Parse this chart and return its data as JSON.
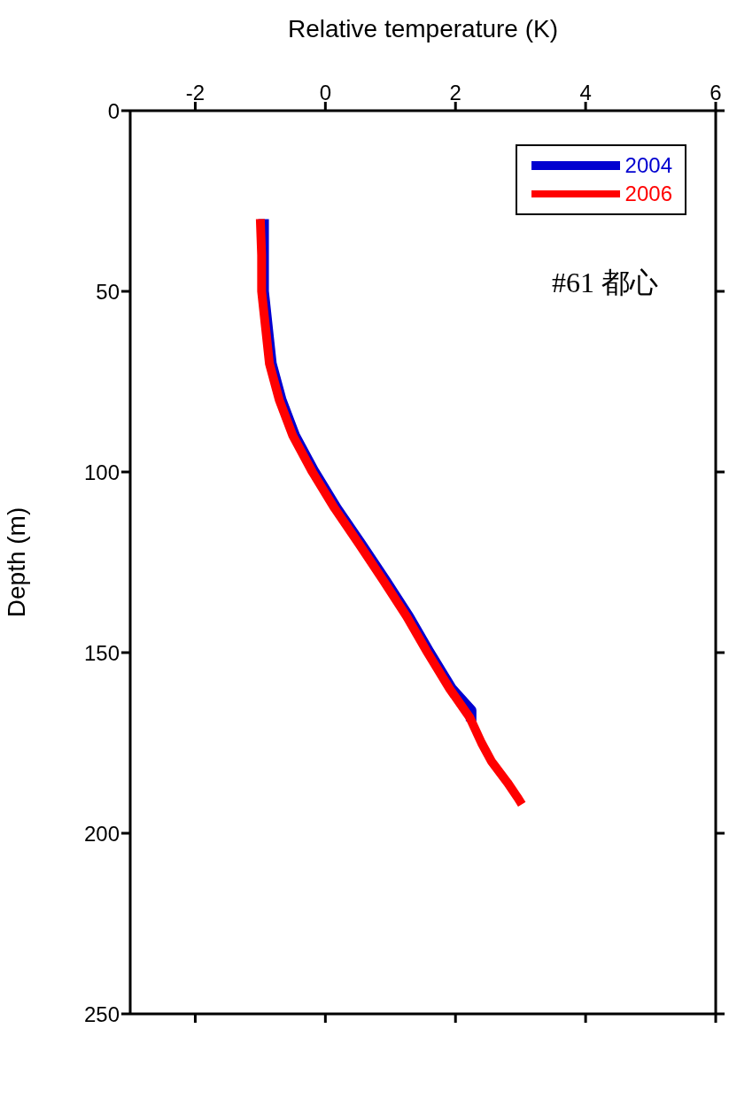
{
  "chart_data": {
    "type": "line",
    "xlabel": "Relative temperature (K)",
    "ylabel": "Depth (m)",
    "xlim": [
      -3,
      6
    ],
    "xticks": [
      -2,
      0,
      2,
      4,
      6
    ],
    "ylim": [
      250,
      0
    ],
    "yticks": [
      0,
      50,
      100,
      150,
      200,
      250
    ],
    "grid": false,
    "legend": "top right",
    "marker": "none",
    "line_style": "solid",
    "annotations": [
      "#61 都心"
    ],
    "series": [
      {
        "name": "2004",
        "color": "#0000d0",
        "x": [
          -0.95,
          -0.95,
          -0.95,
          -0.89,
          -0.83,
          -0.68,
          -0.47,
          -0.17,
          0.17,
          0.55,
          0.92,
          1.28,
          1.6,
          1.94,
          2.24,
          2.24
        ],
        "values": [
          30,
          40,
          50,
          60,
          70,
          80,
          90,
          100,
          110,
          120,
          130,
          140,
          150,
          160,
          166,
          169
        ]
      },
      {
        "name": "2006",
        "color": "#ff0000",
        "x": [
          -1.0,
          -0.98,
          -0.98,
          -0.92,
          -0.86,
          -0.71,
          -0.5,
          -0.2,
          0.14,
          0.52,
          0.89,
          1.25,
          1.57,
          1.91,
          2.22,
          2.4,
          2.55,
          2.8,
          2.95,
          3.02
        ],
        "values": [
          30,
          40,
          50,
          60,
          70,
          80,
          90,
          100,
          110,
          120,
          130,
          140,
          150,
          160,
          168,
          175,
          180,
          186,
          190,
          192
        ]
      }
    ]
  }
}
